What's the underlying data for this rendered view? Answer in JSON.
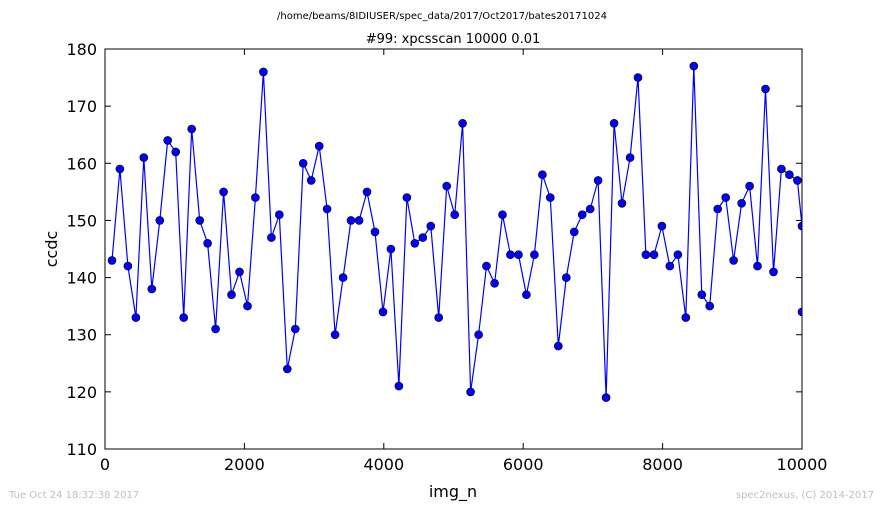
{
  "chart_data": {
    "type": "line",
    "suptitle": "/home/beams/8IDIUSER/spec_data/2017/Oct2017/bates20171024",
    "title": "#99: xpcsscan 10000 0.01",
    "xlabel": "img_n",
    "ylabel": "ccdc",
    "xlim": [
      0,
      10000
    ],
    "ylim": [
      110,
      180
    ],
    "xticks": [
      0,
      2000,
      4000,
      6000,
      8000,
      10000
    ],
    "yticks": [
      110,
      120,
      130,
      140,
      150,
      160,
      170,
      180
    ],
    "grid": false,
    "marker": "circle",
    "color": "#0000ff",
    "marker_face": "#0000ff",
    "x": [
      100,
      214,
      329,
      443,
      557,
      672,
      786,
      900,
      1015,
      1129,
      1244,
      1358,
      1472,
      1587,
      1701,
      1815,
      1930,
      2044,
      2158,
      2273,
      2387,
      2501,
      2616,
      2730,
      2844,
      2959,
      3073,
      3187,
      3302,
      3416,
      3530,
      3645,
      3759,
      3874,
      3988,
      4102,
      4217,
      4331,
      4445,
      4560,
      4674,
      4788,
      4903,
      5017,
      5131,
      5246,
      5360,
      5474,
      5589,
      5703,
      5817,
      5932,
      6046,
      6160,
      6275,
      6389,
      6503,
      6618,
      6732,
      6846,
      6961,
      7075,
      7189,
      7304,
      7418,
      7533,
      7647,
      7761,
      7876,
      7990,
      8104,
      8219,
      8333,
      8447,
      8562,
      8676,
      8790,
      8905,
      9019,
      9133,
      9248,
      9362,
      9476,
      9591,
      9705,
      9819,
      9934,
      10000
    ],
    "y": [
      143,
      159,
      142,
      133,
      161,
      138,
      150,
      164,
      162,
      133,
      166,
      150,
      146,
      131,
      155,
      137,
      141,
      135,
      154,
      176,
      147,
      151,
      124,
      131,
      160,
      157,
      163,
      152,
      130,
      140,
      150,
      150,
      155,
      148,
      134,
      145,
      121,
      154,
      146,
      147,
      149,
      133,
      156,
      151,
      167,
      120,
      130,
      142,
      139,
      151,
      144,
      144,
      137,
      144,
      158,
      154,
      128,
      140,
      148,
      151,
      152,
      157,
      119,
      167,
      153,
      161,
      175,
      144,
      144,
      149,
      142,
      144,
      133,
      177,
      137,
      135,
      152,
      154,
      143,
      153,
      156,
      142,
      173,
      141,
      159,
      158,
      157,
      149
    ],
    "x_extra": [
      10000
    ],
    "y_extra": [
      134
    ]
  },
  "footer": {
    "timestamp": "Tue Oct 24 18:32:38 2017",
    "credit": "spec2nexus, (C) 2014-2017"
  }
}
